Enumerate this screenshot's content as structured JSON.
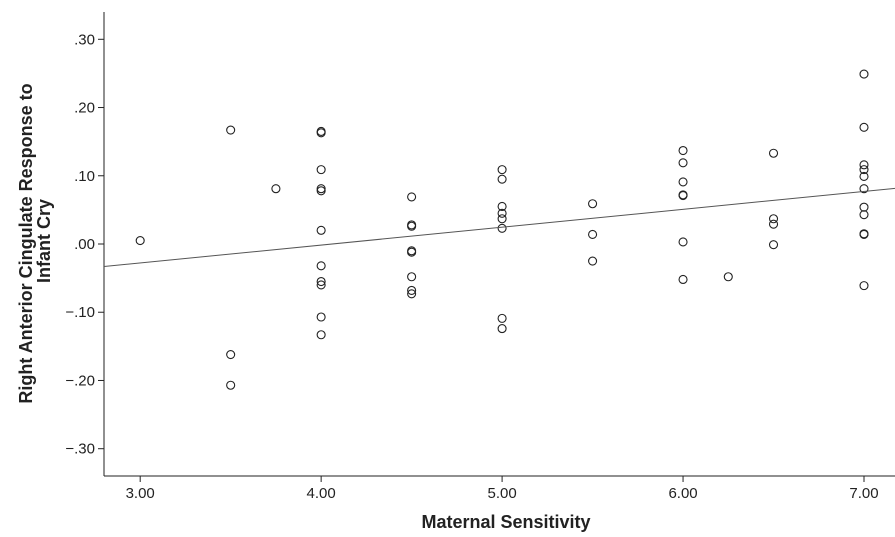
{
  "chart_data": {
    "type": "scatter",
    "title": "",
    "xlabel": "Maternal Sensitivity",
    "ylabel_lines": [
      "Right Anterior Cingulate Response to",
      "Infant Cry"
    ],
    "xlim": [
      2.8,
      7.0
    ],
    "ylim": [
      -0.34,
      0.34
    ],
    "x_ticks": [
      3.0,
      4.0,
      5.0,
      6.0,
      7.0
    ],
    "x_tick_labels": [
      "3.00",
      "4.00",
      "5.00",
      "6.00",
      "7.00"
    ],
    "y_ticks": [
      0.3,
      0.2,
      0.1,
      0.0,
      -0.1,
      -0.2,
      -0.3
    ],
    "y_tick_labels": [
      ".30",
      ".20",
      ".10",
      ".00",
      "−.10",
      "−.20",
      "−.30"
    ],
    "grid": false,
    "legend": "none",
    "fit_line": {
      "x": [
        2.8,
        7.0
      ],
      "y": [
        -0.033,
        0.077
      ]
    },
    "points": [
      {
        "x": 3.0,
        "y": 0.005
      },
      {
        "x": 3.5,
        "y": 0.167
      },
      {
        "x": 3.5,
        "y": -0.162
      },
      {
        "x": 3.5,
        "y": -0.207
      },
      {
        "x": 3.75,
        "y": 0.081
      },
      {
        "x": 4.0,
        "y": 0.165
      },
      {
        "x": 4.0,
        "y": 0.163
      },
      {
        "x": 4.0,
        "y": 0.109
      },
      {
        "x": 4.0,
        "y": 0.081
      },
      {
        "x": 4.0,
        "y": 0.078
      },
      {
        "x": 4.0,
        "y": 0.02
      },
      {
        "x": 4.0,
        "y": -0.032
      },
      {
        "x": 4.0,
        "y": -0.055
      },
      {
        "x": 4.0,
        "y": -0.06
      },
      {
        "x": 4.0,
        "y": -0.107
      },
      {
        "x": 4.0,
        "y": -0.133
      },
      {
        "x": 4.5,
        "y": 0.069
      },
      {
        "x": 4.5,
        "y": 0.028
      },
      {
        "x": 4.5,
        "y": 0.026
      },
      {
        "x": 4.5,
        "y": -0.01
      },
      {
        "x": 4.5,
        "y": -0.012
      },
      {
        "x": 4.5,
        "y": -0.048
      },
      {
        "x": 4.5,
        "y": -0.068
      },
      {
        "x": 4.5,
        "y": -0.073
      },
      {
        "x": 5.0,
        "y": 0.109
      },
      {
        "x": 5.0,
        "y": 0.095
      },
      {
        "x": 5.0,
        "y": 0.055
      },
      {
        "x": 5.0,
        "y": 0.045
      },
      {
        "x": 5.0,
        "y": 0.037
      },
      {
        "x": 5.0,
        "y": 0.023
      },
      {
        "x": 5.0,
        "y": -0.109
      },
      {
        "x": 5.0,
        "y": -0.124
      },
      {
        "x": 5.5,
        "y": 0.059
      },
      {
        "x": 5.5,
        "y": 0.014
      },
      {
        "x": 5.5,
        "y": -0.025
      },
      {
        "x": 6.0,
        "y": 0.137
      },
      {
        "x": 6.0,
        "y": 0.119
      },
      {
        "x": 6.0,
        "y": 0.091
      },
      {
        "x": 6.0,
        "y": 0.072
      },
      {
        "x": 6.0,
        "y": 0.071
      },
      {
        "x": 6.0,
        "y": 0.003
      },
      {
        "x": 6.0,
        "y": -0.052
      },
      {
        "x": 6.25,
        "y": -0.048
      },
      {
        "x": 6.5,
        "y": 0.133
      },
      {
        "x": 6.5,
        "y": 0.037
      },
      {
        "x": 6.5,
        "y": 0.029
      },
      {
        "x": 6.5,
        "y": -0.001
      },
      {
        "x": 7.0,
        "y": 0.249
      },
      {
        "x": 7.0,
        "y": 0.171
      },
      {
        "x": 7.0,
        "y": 0.116
      },
      {
        "x": 7.0,
        "y": 0.109
      },
      {
        "x": 7.0,
        "y": 0.099
      },
      {
        "x": 7.0,
        "y": 0.081
      },
      {
        "x": 7.0,
        "y": 0.054
      },
      {
        "x": 7.0,
        "y": 0.043
      },
      {
        "x": 7.0,
        "y": 0.015
      },
      {
        "x": 7.0,
        "y": 0.014
      },
      {
        "x": 7.0,
        "y": -0.061
      }
    ],
    "colors": {
      "marker": "#222222",
      "line": "#555555",
      "axis": "#222222"
    }
  }
}
